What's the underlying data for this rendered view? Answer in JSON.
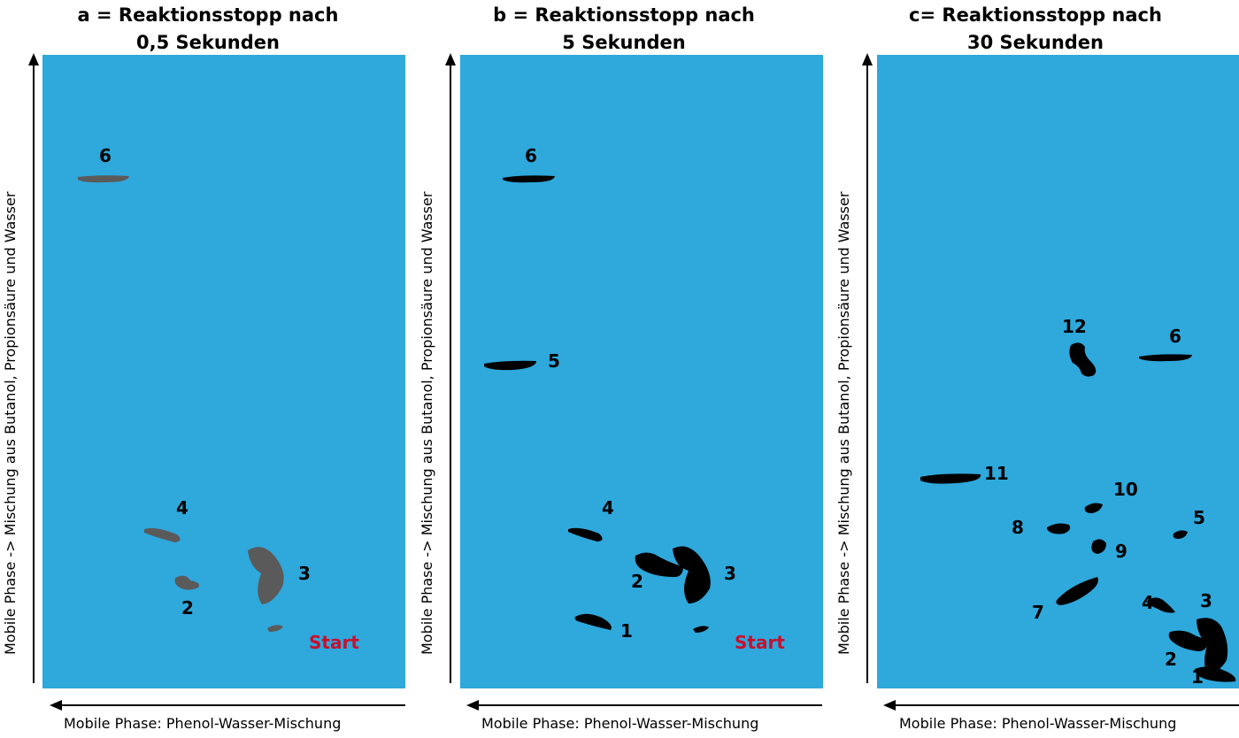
{
  "panels": [
    {
      "title_line1": "a = Reaktionsstopp nach",
      "title_line2": "0,5 Sekunden",
      "y_axis_label": "Mobile Phase -> Mischung aus Butanol, Propionsäure und Wasser",
      "x_axis_label": "Mobile Phase: Phenol-Wasser-Mischung",
      "spot_color": "#5a5a5a",
      "spot_labels": [
        "6",
        "4",
        "3",
        "2"
      ],
      "start_label": "Start"
    },
    {
      "title_line1": "b = Reaktionsstopp nach",
      "title_line2": "5 Sekunden",
      "y_axis_label": "Mobile Phase -> Mischung aus Butanol, Propionsäure und Wasser",
      "x_axis_label": "Mobile Phase: Phenol-Wasser-Mischung",
      "spot_color": "#000000",
      "spot_labels": [
        "6",
        "5",
        "4",
        "3",
        "2",
        "1"
      ],
      "start_label": "Start"
    },
    {
      "title_line1": "c= Reaktionsstopp nach",
      "title_line2": "30 Sekunden",
      "y_axis_label": "Mobile Phase -> Mischung aus Butanol, Propionsäure und Wasser",
      "x_axis_label": "Mobile Phase: Phenol-Wasser-Mischung",
      "spot_color": "#000000",
      "spot_labels": [
        "12",
        "6",
        "11",
        "10",
        "8",
        "9",
        "5",
        "7",
        "4",
        "3",
        "2",
        "1"
      ]
    }
  ],
  "colors": {
    "plate": "#2fa8dc",
    "start": "#c8102e",
    "spot_a": "#5a5a5a",
    "spot_bc": "#000000"
  }
}
